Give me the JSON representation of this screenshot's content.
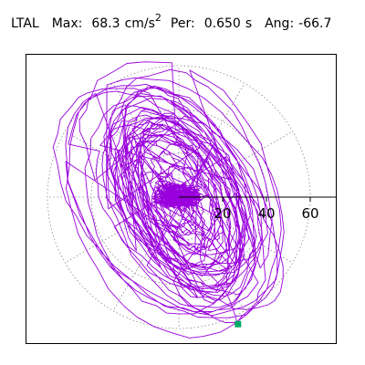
{
  "header": {
    "station": "LTAL",
    "max_label": "Max:",
    "max_value": "68.3",
    "max_unit": "cm/s",
    "max_unit_exp": "2",
    "per_label": "Per:",
    "per_value": "0.650",
    "per_unit": "s",
    "ang_label": "Ang:",
    "ang_value": "-66.7"
  },
  "colors": {
    "trace": "#9900dd",
    "end_marker": "#00aa66",
    "grid": "#888888",
    "axis": "#000000",
    "frame": "#000000"
  },
  "chart_data": {
    "type": "line",
    "title": "LTAL Max: 68.3 cm/s2 Per: 0.650 s Ang: -66.7",
    "xlabel": "",
    "ylabel": "",
    "coordinate_system": "polar",
    "radial_ticks": [
      20,
      40,
      60
    ],
    "radial_tick_labels": [
      "20",
      "40",
      "60"
    ],
    "grid": "dotted",
    "max_amplitude": 68.3,
    "units": "cm/s2",
    "period_s": 0.65,
    "angle_deg": -66.7,
    "end_point": {
      "x": 27,
      "y": -58
    },
    "series": [
      {
        "orbit": "elliptical-drift",
        "semi_major_range": [
          8,
          68
        ],
        "semi_minor_ratio_range": [
          0.35,
          0.75
        ],
        "orientation_deg": -60,
        "loops": 42
      }
    ]
  }
}
